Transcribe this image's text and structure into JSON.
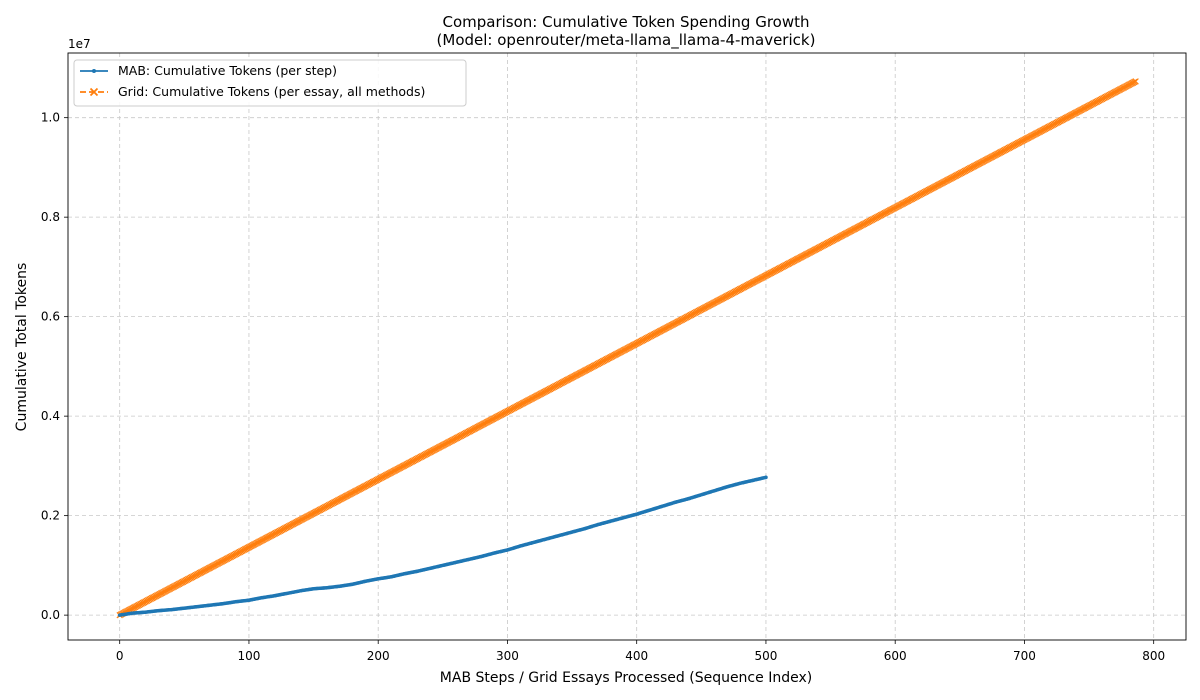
{
  "chart_data": {
    "type": "line",
    "title": "Comparison: Cumulative Token Spending Growth",
    "subtitle": "(Model: openrouter/meta-llama_llama-4-maverick)",
    "xlabel": "MAB Steps / Grid Essays Processed (Sequence Index)",
    "ylabel": "Cumulative Total Tokens",
    "y_offset_label": "1e7",
    "xlim": [
      -40,
      825
    ],
    "ylim": [
      -0.05,
      1.13
    ],
    "x_ticks": [
      0,
      100,
      200,
      300,
      400,
      500,
      600,
      700,
      800
    ],
    "x_tick_labels": [
      "0",
      "100",
      "200",
      "300",
      "400",
      "500",
      "600",
      "700",
      "800"
    ],
    "y_ticks": [
      0.0,
      0.2,
      0.4,
      0.6,
      0.8,
      1.0
    ],
    "y_tick_labels": [
      "0.0",
      "0.2",
      "0.4",
      "0.6",
      "0.8",
      "1.0"
    ],
    "grid": true,
    "legend_position": "top-left",
    "series": [
      {
        "name": "MAB: Cumulative Tokens (per step)",
        "color": "#1f77b4",
        "line_style": "solid",
        "marker": "dot",
        "x": [
          0,
          10,
          20,
          30,
          40,
          50,
          60,
          70,
          80,
          90,
          100,
          110,
          120,
          130,
          140,
          150,
          160,
          170,
          180,
          190,
          200,
          210,
          220,
          230,
          240,
          250,
          260,
          270,
          280,
          290,
          300,
          310,
          320,
          330,
          340,
          350,
          360,
          370,
          380,
          390,
          400,
          410,
          420,
          430,
          440,
          450,
          460,
          470,
          480,
          490,
          500
        ],
        "y": [
          0.0,
          0.004,
          0.006,
          0.009,
          0.011,
          0.014,
          0.017,
          0.02,
          0.023,
          0.027,
          0.03,
          0.035,
          0.039,
          0.044,
          0.049,
          0.053,
          0.055,
          0.058,
          0.062,
          0.068,
          0.073,
          0.077,
          0.083,
          0.088,
          0.094,
          0.1,
          0.106,
          0.112,
          0.118,
          0.125,
          0.131,
          0.139,
          0.146,
          0.153,
          0.16,
          0.167,
          0.174,
          0.182,
          0.189,
          0.196,
          0.203,
          0.211,
          0.219,
          0.227,
          0.234,
          0.242,
          0.25,
          0.258,
          0.265,
          0.271,
          0.277
        ]
      },
      {
        "name": "Grid: Cumulative Tokens (per essay, all methods)",
        "color": "#ff7f0e",
        "line_style": "dashed",
        "marker": "x",
        "x_start": 0,
        "x_end": 786,
        "x_step": 1,
        "y_start": 0.0,
        "y_end": 1.073
      }
    ]
  }
}
